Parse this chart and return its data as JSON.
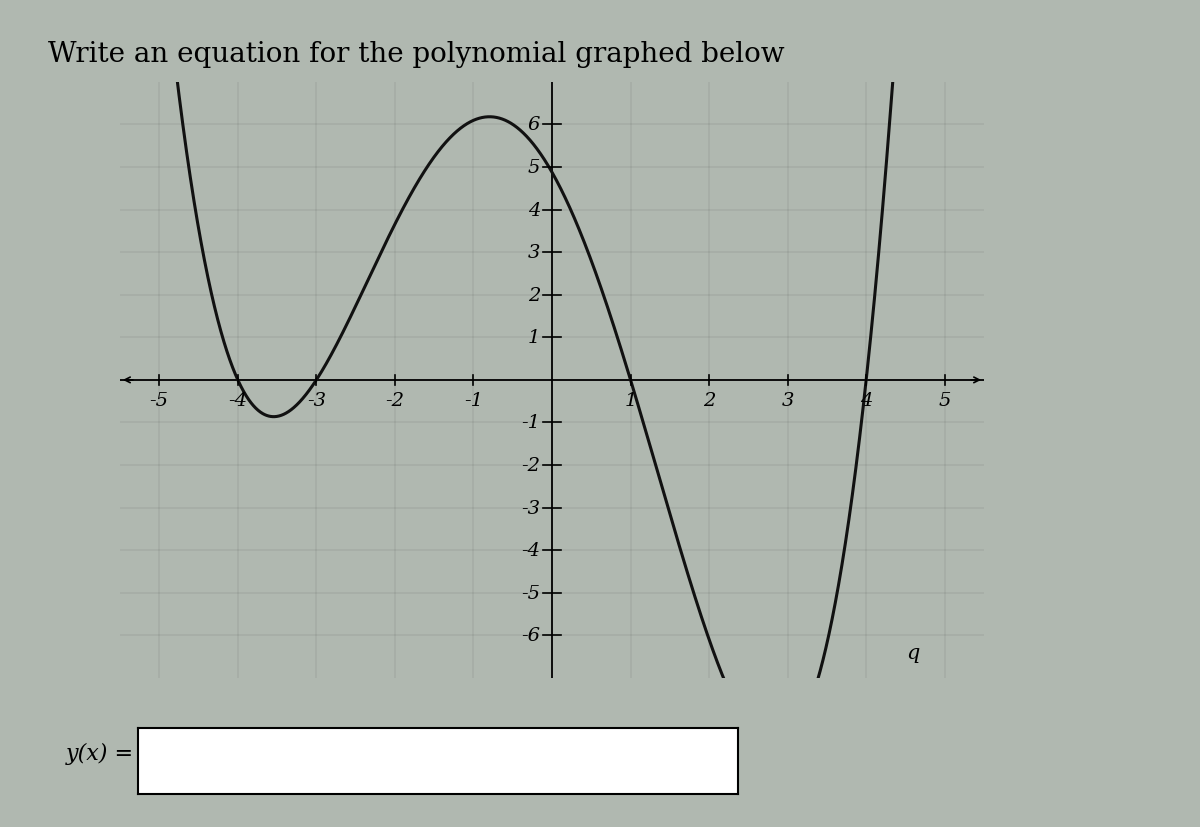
{
  "title": "Write an equation for the polynomial graphed below",
  "xlim": [
    -5.5,
    5.5
  ],
  "ylim": [
    -7,
    7
  ],
  "xticks": [
    -5,
    -4,
    -3,
    -2,
    -1,
    1,
    2,
    3,
    4,
    5
  ],
  "yticks": [
    -6,
    -5,
    -4,
    -3,
    -2,
    -1,
    1,
    2,
    3,
    4,
    5,
    6
  ],
  "roots": [
    -4,
    -3,
    1,
    4
  ],
  "scale": 0.1,
  "curve_color": "#111111",
  "bg_light": "#b8c8b8",
  "bg_dark": "#9aacba",
  "title_fontsize": 20,
  "tick_fontsize": 14,
  "answer_label": "y(x) =",
  "answer_label_fontsize": 16,
  "q_label": "q",
  "q_x": 4.6,
  "q_y": -6.4,
  "curve_linewidth": 2.2
}
